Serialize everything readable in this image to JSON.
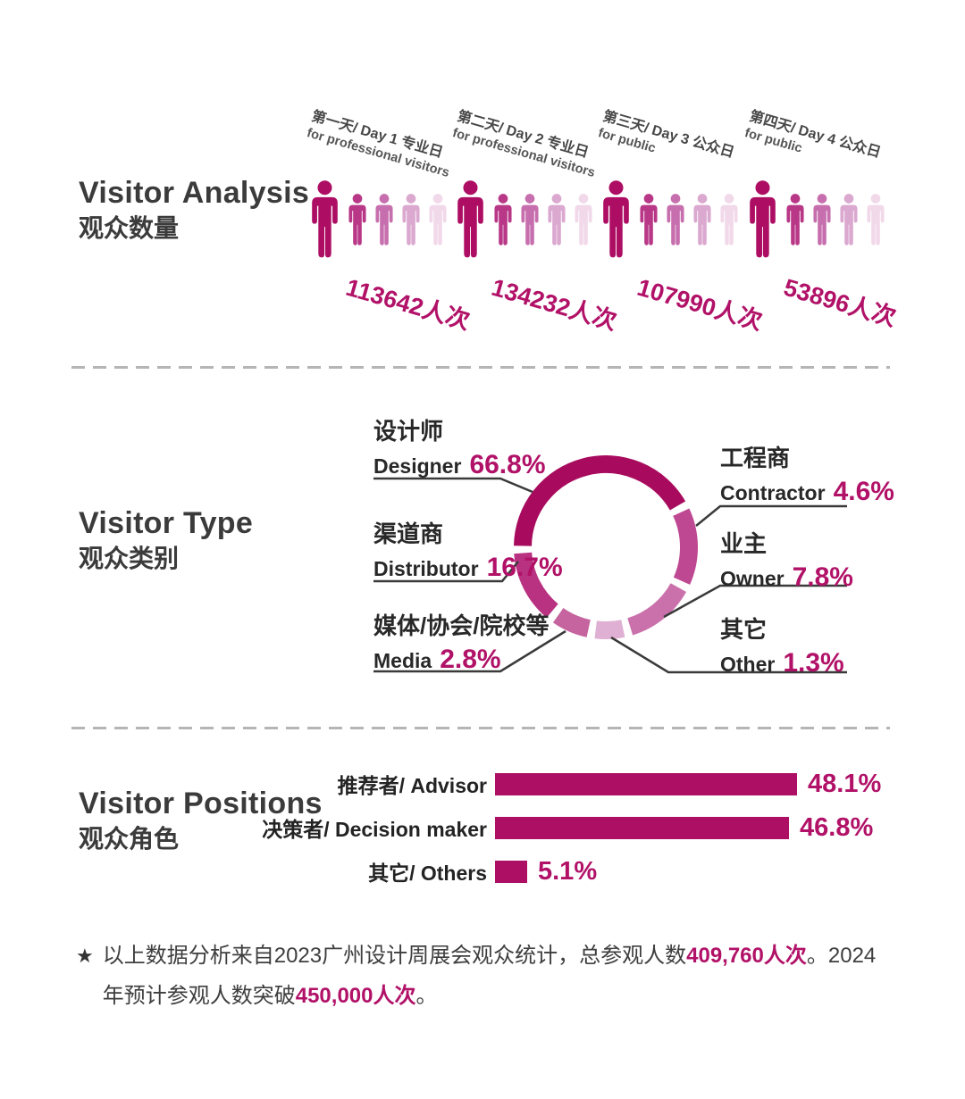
{
  "colors": {
    "accent": "#b11268",
    "bar": "#ad0f64",
    "divider": "#b5b5b5",
    "connector": "#3a3a3a",
    "person_shades": [
      "#ad0e63",
      "#b83787",
      "#c76fae",
      "#dba8d0",
      "#f1d9ea"
    ]
  },
  "visitor_analysis": {
    "title_en": "Visitor Analysis",
    "title_zh": "观众数量",
    "days": [
      {
        "label_line1": "第一天/ Day 1 专业日",
        "label_line2": "for professional visitors",
        "count": "113642人次"
      },
      {
        "label_line1": "第二天/ Day 2 专业日",
        "label_line2": "for professional visitors",
        "count": "134232人次"
      },
      {
        "label_line1": "第三天/ Day 3 公众日",
        "label_line2": "for public",
        "count": "107990人次"
      },
      {
        "label_line1": "第四天/ Day 4 公众日",
        "label_line2": "for public",
        "count": "53896人次"
      }
    ]
  },
  "visitor_type": {
    "title_en": "Visitor Type",
    "title_zh": "观众类别",
    "labels": {
      "designer": {
        "zh": "设计师",
        "en": "Designer",
        "pct": "66.8%"
      },
      "distributor": {
        "zh": "渠道商",
        "en": "Distributor",
        "pct": "16.7%"
      },
      "media": {
        "zh": "媒体/协会/院校等",
        "en": "Media",
        "pct": "2.8%"
      },
      "contractor": {
        "zh": "工程商",
        "en": "Contractor",
        "pct": "4.6%"
      },
      "owner": {
        "zh": "业主",
        "en": "Owner",
        "pct": "7.8%"
      },
      "other": {
        "zh": "其它",
        "en": "Other",
        "pct": "1.3%"
      }
    },
    "donut_segments": [
      {
        "id": "designer",
        "color": "#a80b5e",
        "start": 271,
        "end": 420
      },
      {
        "id": "contractor",
        "color": "#bf4892",
        "start": 65,
        "end": 114
      },
      {
        "id": "owner",
        "color": "#ca71ac",
        "start": 119,
        "end": 163
      },
      {
        "id": "other",
        "color": "#dfb0d3",
        "start": 168,
        "end": 187
      },
      {
        "id": "media",
        "color": "#c5649f",
        "start": 192,
        "end": 215
      },
      {
        "id": "distributor",
        "color": "#b93181",
        "start": 220,
        "end": 266
      }
    ]
  },
  "visitor_positions": {
    "title_en": "Visitor Positions",
    "title_zh": "观众角色",
    "bars": [
      {
        "label": "推荐者/ Advisor",
        "value": 48.1,
        "pct": "48.1%"
      },
      {
        "label": "决策者/ Decision maker",
        "value": 46.8,
        "pct": "46.8%"
      },
      {
        "label": "其它/ Others",
        "value": 5.1,
        "pct": "5.1%"
      }
    ]
  },
  "footnote": {
    "star": "★",
    "part1": "以上数据分析来自2023广州设计周展会观众统计，总参观人数",
    "num1": "409,760人次",
    "part2": "。2024年预计参观人数突破",
    "num2": "450,000人次",
    "part3": "。"
  },
  "chart_data": [
    {
      "type": "bar",
      "variant": "pictogram",
      "title": "Visitor Analysis 观众数量",
      "categories": [
        "第一天/ Day 1 专业日 for professional visitors",
        "第二天/ Day 2 专业日 for professional visitors",
        "第三天/ Day 3 公众日 for public",
        "第四天/ Day 4 公众日 for public"
      ],
      "values": [
        113642,
        134232,
        107990,
        53896
      ],
      "unit": "人次"
    },
    {
      "type": "pie",
      "variant": "donut",
      "title": "Visitor Type 观众类别",
      "labels": [
        "设计师 Designer",
        "渠道商 Distributor",
        "媒体/协会/院校等 Media",
        "工程商 Contractor",
        "业主 Owner",
        "其它 Other"
      ],
      "values": [
        66.8,
        16.7,
        2.8,
        4.6,
        7.8,
        1.3
      ],
      "unit": "%",
      "legend_position": "callouts-around-donut"
    },
    {
      "type": "bar",
      "variant": "horizontal",
      "title": "Visitor Positions 观众角色",
      "categories": [
        "推荐者/ Advisor",
        "决策者/ Decision maker",
        "其它/ Others"
      ],
      "values": [
        48.1,
        46.8,
        5.1
      ],
      "unit": "%",
      "xlim": [
        0,
        50
      ],
      "grid": false
    }
  ]
}
